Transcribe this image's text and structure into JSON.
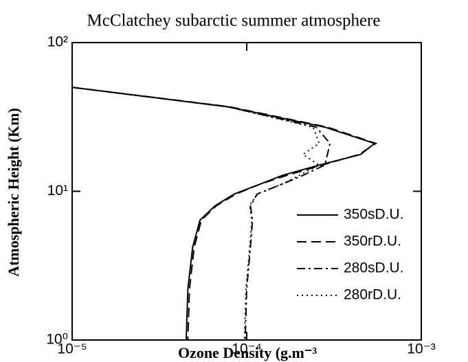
{
  "chart_data": {
    "type": "line",
    "title": "McClatchey subarctic summer atmosphere",
    "xlabel": "Ozone Density (g.m⁻³",
    "ylabel": "Atmospheric Height (Km)",
    "xscale": "log",
    "yscale": "log",
    "xlim": [
      1e-05,
      0.001
    ],
    "ylim": [
      1,
      100
    ],
    "xticks": [
      {
        "value": 1e-05,
        "label": "10⁻⁵"
      },
      {
        "value": 0.0001,
        "label": "10⁻⁴"
      },
      {
        "value": 0.001,
        "label": "10⁻³"
      }
    ],
    "yticks": [
      {
        "value": 1,
        "label": "10⁰"
      },
      {
        "value": 10,
        "label": "10¹"
      },
      {
        "value": 100,
        "label": "10²"
      }
    ],
    "grid": false,
    "legend": "lower right",
    "series": [
      {
        "name": "350sD.U.",
        "color": "#000000",
        "linestyle": "solid",
        "x": [
          1e-05,
          7.8e-05,
          0.00028,
          0.00054,
          0.00045,
          0.00026,
          0.00016,
          0.00012,
          8.5e-05,
          6.6e-05,
          5.4e-05,
          4.9e-05,
          4.6e-05,
          4.5e-05
        ],
        "values": [
          50,
          37,
          27,
          21,
          17.7,
          15,
          12.8,
          11.2,
          9.6,
          8,
          6.4,
          4.2,
          2.2,
          1
        ]
      },
      {
        "name": "350rD.U.",
        "color": "#000000",
        "linestyle": "dashed",
        "x": [
          1e-05,
          8e-05,
          0.00029,
          0.00055,
          0.00044,
          0.00027,
          0.00017,
          0.00012,
          8.7e-05,
          6.7e-05,
          5.5e-05,
          5e-05,
          4.7e-05,
          4.6e-05
        ],
        "values": [
          50,
          37,
          27,
          21,
          17.7,
          15,
          12.8,
          11.2,
          9.6,
          8,
          6.4,
          4.2,
          2.2,
          1
        ]
      },
      {
        "name": "280sD.U.",
        "color": "#000000",
        "linestyle": "dashdot",
        "x": [
          1e-05,
          7.8e-05,
          0.00025,
          0.0003,
          0.00029,
          0.00028,
          0.00021,
          0.00016,
          0.000115,
          0.000105,
          0.000108,
          0.000105,
          0.0001,
          9.8e-05
        ],
        "values": [
          50,
          37,
          27,
          21,
          17.7,
          15,
          12.8,
          11.2,
          9.6,
          8,
          6.4,
          4.2,
          2.2,
          1
        ]
      },
      {
        "name": "280rD.U.",
        "color": "#000000",
        "linestyle": "dotted",
        "x": [
          1e-05,
          7.8e-05,
          0.00024,
          0.00026,
          0.00021,
          0.00026,
          0.0002,
          0.00016,
          0.000115,
          0.000104,
          0.000107,
          0.000104,
          9.9e-05,
          9.7e-05
        ],
        "values": [
          50,
          37,
          27,
          21,
          17.7,
          15,
          12.8,
          11.2,
          9.6,
          8,
          6.4,
          4.2,
          2.2,
          1
        ]
      }
    ]
  }
}
